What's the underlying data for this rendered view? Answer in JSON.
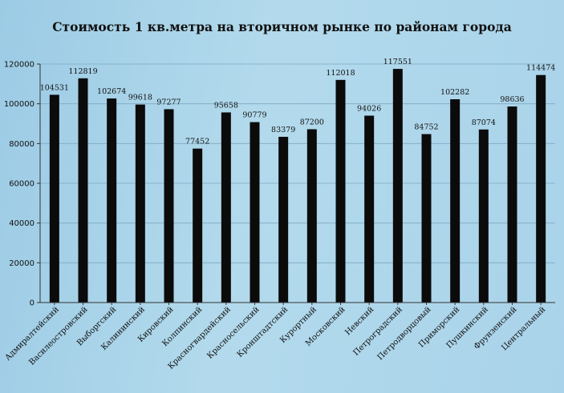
{
  "chart_data": {
    "type": "bar",
    "title": "Стоимость 1 кв.метра на вторичном  рынке по районам  города",
    "xlabel": "",
    "ylabel": "",
    "ylim": [
      0,
      120000
    ],
    "yticks": [
      0,
      20000,
      40000,
      60000,
      80000,
      100000,
      120000
    ],
    "grid": true,
    "legend": "none",
    "categories": [
      "Адмиралтейский",
      "Василеостровский",
      "Выборгский",
      "Калининский",
      "Кировский",
      "Колпинский",
      "Красногвардейский",
      "Красносельский",
      "Кронштадтский",
      "Курортный",
      "Московский",
      "Невский",
      "Петроградский",
      "Петродворцовый",
      "Приморский",
      "Пушкинский",
      "Фрунзенский",
      "Центральный"
    ],
    "values": [
      104531,
      112819,
      102674,
      99618,
      97277,
      77452,
      95658,
      90779,
      83379,
      87200,
      112018,
      94026,
      117551,
      84752,
      102282,
      87074,
      98636,
      114474
    ],
    "colors": {
      "bar": "#0b0b0b",
      "grid": "#7fa9c2",
      "axis": "#333333",
      "text": "#111111"
    }
  }
}
